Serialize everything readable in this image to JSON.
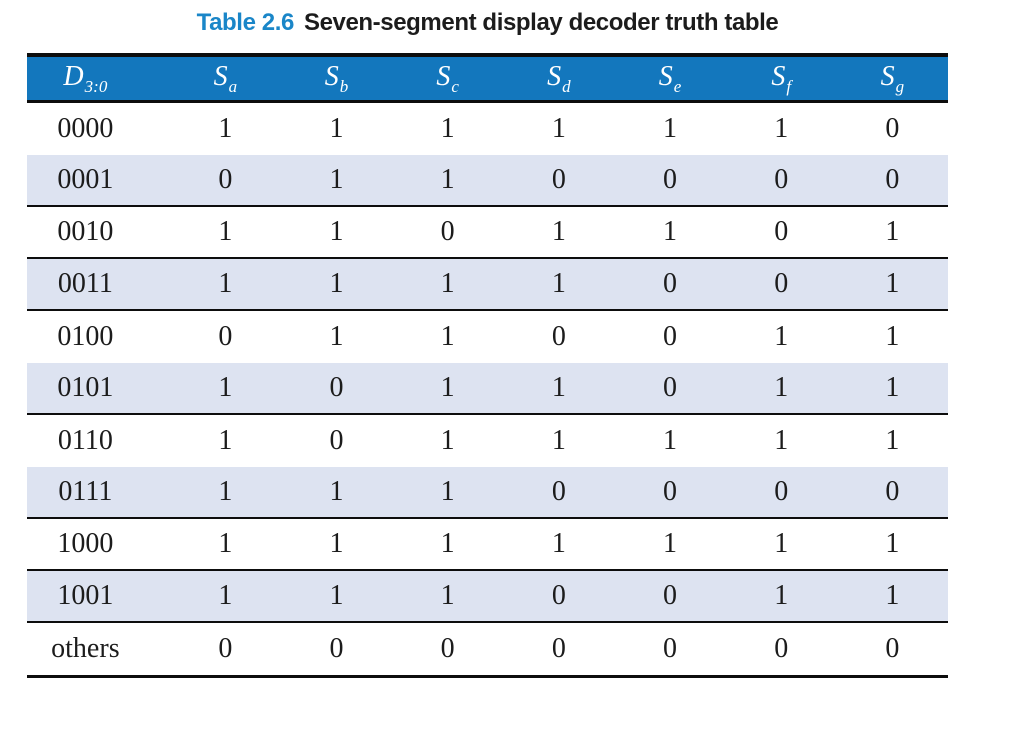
{
  "caption": {
    "label": "Table 2.6",
    "text": "Seven-segment display decoder truth table"
  },
  "colors": {
    "header_bg": "#1377bd",
    "shaded_row": "#dde3f1",
    "title_accent": "#1a86c8",
    "rule": "#0d0d0d",
    "text": "#1c1c1c"
  },
  "table": {
    "columns": [
      {
        "base": "D",
        "sub": "3:0"
      },
      {
        "base": "S",
        "sub": "a"
      },
      {
        "base": "S",
        "sub": "b"
      },
      {
        "base": "S",
        "sub": "c"
      },
      {
        "base": "S",
        "sub": "d"
      },
      {
        "base": "S",
        "sub": "e"
      },
      {
        "base": "S",
        "sub": "f"
      },
      {
        "base": "S",
        "sub": "g"
      }
    ],
    "rows": [
      {
        "input": "0000",
        "outputs": [
          "1",
          "1",
          "1",
          "1",
          "1",
          "1",
          "0"
        ],
        "shaded": false,
        "rule_below": false
      },
      {
        "input": "0001",
        "outputs": [
          "0",
          "1",
          "1",
          "0",
          "0",
          "0",
          "0"
        ],
        "shaded": true,
        "rule_below": true
      },
      {
        "input": "0010",
        "outputs": [
          "1",
          "1",
          "0",
          "1",
          "1",
          "0",
          "1"
        ],
        "shaded": false,
        "rule_below": true
      },
      {
        "input": "0011",
        "outputs": [
          "1",
          "1",
          "1",
          "1",
          "0",
          "0",
          "1"
        ],
        "shaded": true,
        "rule_below": true
      },
      {
        "input": "0100",
        "outputs": [
          "0",
          "1",
          "1",
          "0",
          "0",
          "1",
          "1"
        ],
        "shaded": false,
        "rule_below": false
      },
      {
        "input": "0101",
        "outputs": [
          "1",
          "0",
          "1",
          "1",
          "0",
          "1",
          "1"
        ],
        "shaded": true,
        "rule_below": true
      },
      {
        "input": "0110",
        "outputs": [
          "1",
          "0",
          "1",
          "1",
          "1",
          "1",
          "1"
        ],
        "shaded": false,
        "rule_below": false
      },
      {
        "input": "0111",
        "outputs": [
          "1",
          "1",
          "1",
          "0",
          "0",
          "0",
          "0"
        ],
        "shaded": true,
        "rule_below": true
      },
      {
        "input": "1000",
        "outputs": [
          "1",
          "1",
          "1",
          "1",
          "1",
          "1",
          "1"
        ],
        "shaded": false,
        "rule_below": true
      },
      {
        "input": "1001",
        "outputs": [
          "1",
          "1",
          "1",
          "0",
          "0",
          "1",
          "1"
        ],
        "shaded": true,
        "rule_below": true
      },
      {
        "input": "others",
        "outputs": [
          "0",
          "0",
          "0",
          "0",
          "0",
          "0",
          "0"
        ],
        "shaded": false,
        "rule_below": false
      }
    ]
  }
}
